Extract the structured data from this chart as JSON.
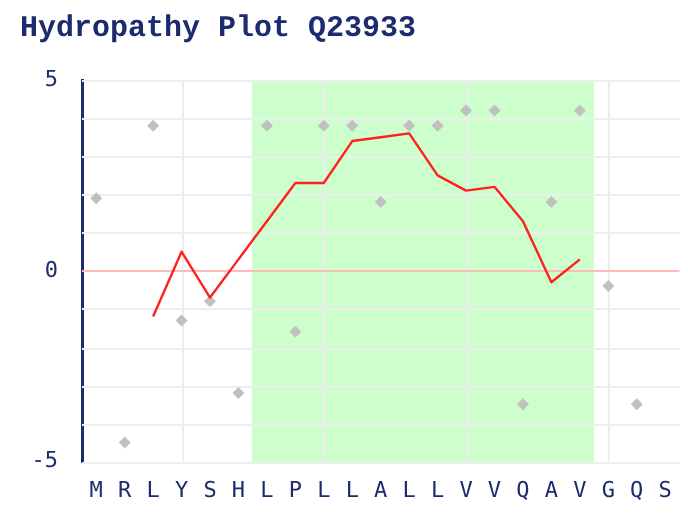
{
  "chart_data": {
    "type": "line",
    "title": "Hydropathy Plot Q23933",
    "categories": [
      "M",
      "R",
      "L",
      "Y",
      "S",
      "H",
      "L",
      "P",
      "L",
      "L",
      "A",
      "L",
      "L",
      "V",
      "V",
      "Q",
      "A",
      "V",
      "G",
      "Q",
      "S"
    ],
    "series": [
      {
        "type": "scatter",
        "color": "#c0c0c0",
        "marker": "diamond",
        "values": [
          1.9,
          -4.5,
          3.8,
          -1.3,
          -0.8,
          -3.2,
          3.8,
          -1.6,
          3.8,
          3.8,
          1.8,
          3.8,
          3.8,
          4.2,
          4.2,
          -3.5,
          1.8,
          4.2,
          -0.4,
          -3.5,
          null
        ]
      },
      {
        "color": "#ff2020",
        "marker": "none",
        "values": [
          null,
          null,
          -1.2,
          0.5,
          -0.7,
          0.3,
          1.3,
          2.3,
          2.3,
          3.4,
          3.5,
          3.6,
          2.5,
          2.1,
          2.2,
          1.3,
          -0.3,
          0.3,
          null,
          null,
          null
        ]
      }
    ],
    "ylim": [
      -5,
      5
    ],
    "yticks": [
      {
        "value": -5,
        "label": "-5"
      },
      {
        "value": -4,
        "label": null
      },
      {
        "value": -3,
        "label": null
      },
      {
        "value": -2,
        "label": null
      },
      {
        "value": -1,
        "label": null
      },
      {
        "value": 0,
        "label": "0"
      },
      {
        "value": 1,
        "label": null
      },
      {
        "value": 2,
        "label": null
      },
      {
        "value": 3,
        "label": null
      },
      {
        "value": 4,
        "label": null
      },
      {
        "value": 5,
        "label": "5"
      }
    ],
    "grid": true,
    "ref_lines": [
      {
        "axis": "y",
        "value": 0,
        "color": "#ffbbbb"
      }
    ]
  }
}
